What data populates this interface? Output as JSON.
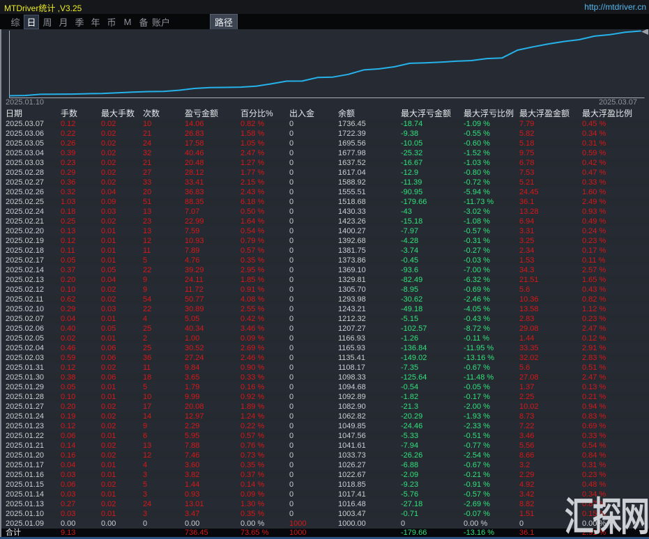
{
  "window": {
    "title": "MTDriver统计 ,V3.25",
    "url": "http://mtdriver.cn"
  },
  "menu": {
    "items": [
      "综",
      "日",
      "周",
      "月",
      "季",
      "年",
      "币",
      "M",
      "备",
      "账户"
    ],
    "selected_item": "日",
    "path_button_label": "路径"
  },
  "chart_data": {
    "type": "line",
    "start_label": "2025.01.10",
    "end_label": "2025.03.07",
    "line_color": "#25b2ea",
    "axis_color": "#a7adb4",
    "ylim": [
      1000,
      1736.45
    ],
    "grid": false,
    "series": [
      {
        "name": "余额",
        "x": [
          "2025.01.09",
          "2025.01.10",
          "2025.01.13",
          "2025.01.14",
          "2025.01.15",
          "2025.01.16",
          "2025.01.17",
          "2025.01.20",
          "2025.01.21",
          "2025.01.22",
          "2025.01.23",
          "2025.01.24",
          "2025.01.27",
          "2025.01.28",
          "2025.01.29",
          "2025.01.30",
          "2025.01.31",
          "2025.02.03",
          "2025.02.04",
          "2025.02.05",
          "2025.02.06",
          "2025.02.07",
          "2025.02.10",
          "2025.02.11",
          "2025.02.12",
          "2025.02.13",
          "2025.02.14",
          "2025.02.17",
          "2025.02.18",
          "2025.02.19",
          "2025.02.20",
          "2025.02.21",
          "2025.02.24",
          "2025.02.25",
          "2025.02.26",
          "2025.02.27",
          "2025.02.28",
          "2025.03.03",
          "2025.03.04",
          "2025.03.05",
          "2025.03.06",
          "2025.03.07"
        ],
        "values": [
          1000.0,
          1003.47,
          1016.48,
          1017.41,
          1018.85,
          1022.67,
          1026.27,
          1033.73,
          1041.61,
          1047.56,
          1049.85,
          1062.82,
          1082.9,
          1092.89,
          1094.68,
          1098.33,
          1108.17,
          1135.41,
          1165.93,
          1166.93,
          1207.27,
          1212.32,
          1243.21,
          1293.98,
          1305.7,
          1329.81,
          1369.1,
          1373.86,
          1381.75,
          1392.68,
          1400.27,
          1423.26,
          1430.33,
          1518.68,
          1555.51,
          1588.92,
          1617.04,
          1637.52,
          1677.98,
          1695.56,
          1722.39,
          1736.45
        ]
      }
    ]
  },
  "table": {
    "columns": [
      {
        "key": "date",
        "label": "日期"
      },
      {
        "key": "lots",
        "label": "手数"
      },
      {
        "key": "max-lots",
        "label": "最大手数"
      },
      {
        "key": "trades",
        "label": "次数"
      },
      {
        "key": "pnl",
        "label": "盈亏金额"
      },
      {
        "key": "pct",
        "label": "百分比%"
      },
      {
        "key": "deposit",
        "label": "出入金"
      },
      {
        "key": "balance",
        "label": "余额"
      },
      {
        "key": "max-float-loss",
        "label": "最大浮亏金额"
      },
      {
        "key": "max-float-loss-pct",
        "label": "最大浮亏比例"
      },
      {
        "key": "max-float-profit",
        "label": "最大浮盈金额"
      },
      {
        "key": "max-float-profit-pct",
        "label": "最大浮盈比例"
      }
    ],
    "rows": [
      [
        "2025.03.07",
        "0.12",
        "0.02",
        "10",
        "14.06",
        "0.82 %",
        "0",
        "1736.45",
        "-18.74",
        "-1.09 %",
        "7.79",
        "0.45 %"
      ],
      [
        "2025.03.06",
        "0.22",
        "0.02",
        "21",
        "26.83",
        "1.58 %",
        "0",
        "1722.39",
        "-9.38",
        "-0.55 %",
        "5.82",
        "0.34 %"
      ],
      [
        "2025.03.05",
        "0.26",
        "0.02",
        "24",
        "17.58",
        "1.05 %",
        "0",
        "1695.56",
        "-10.05",
        "-0.60 %",
        "5.18",
        "0.31 %"
      ],
      [
        "2025.03.04",
        "0.39",
        "0.02",
        "32",
        "40.46",
        "2.47 %",
        "0",
        "1677.98",
        "-25.32",
        "-1.52 %",
        "9.75",
        "0.59 %"
      ],
      [
        "2025.03.03",
        "0.23",
        "0.02",
        "21",
        "20.48",
        "1.27 %",
        "0",
        "1637.52",
        "-16.67",
        "-1.03 %",
        "6.78",
        "0.42 %"
      ],
      [
        "2025.02.28",
        "0.29",
        "0.02",
        "27",
        "28.12",
        "1.77 %",
        "0",
        "1617.04",
        "-12.9",
        "-0.80 %",
        "7.53",
        "0.47 %"
      ],
      [
        "2025.02.27",
        "0.36",
        "0.02",
        "33",
        "33.41",
        "2.15 %",
        "0",
        "1588.92",
        "-11.39",
        "-0.72 %",
        "5.21",
        "0.33 %"
      ],
      [
        "2025.02.26",
        "0.32",
        "0.04",
        "20",
        "36.83",
        "2.43 %",
        "0",
        "1555.51",
        "-90.95",
        "-5.94 %",
        "24.45",
        "1.60 %"
      ],
      [
        "2025.02.25",
        "1.03",
        "0.09",
        "51",
        "88.35",
        "6.18 %",
        "0",
        "1518.68",
        "-179.66",
        "-11.73 %",
        "36.1",
        "2.49 %"
      ],
      [
        "2025.02.24",
        "0.18",
        "0.03",
        "13",
        "7.07",
        "0.50 %",
        "0",
        "1430.33",
        "-43",
        "-3.02 %",
        "13.28",
        "0.93 %"
      ],
      [
        "2025.02.21",
        "0.25",
        "0.02",
        "23",
        "22.99",
        "1.64 %",
        "0",
        "1423.26",
        "-15.18",
        "-1.08 %",
        "6.94",
        "0.49 %"
      ],
      [
        "2025.02.20",
        "0.13",
        "0.01",
        "13",
        "7.59",
        "0.54 %",
        "0",
        "1400.27",
        "-7.97",
        "-0.57 %",
        "3.31",
        "0.24 %"
      ],
      [
        "2025.02.19",
        "0.12",
        "0.01",
        "12",
        "10.93",
        "0.79 %",
        "0",
        "1392.68",
        "-4.28",
        "-0.31 %",
        "3.25",
        "0.23 %"
      ],
      [
        "2025.02.18",
        "0.11",
        "0.01",
        "11",
        "7.89",
        "0.57 %",
        "0",
        "1381.75",
        "-3.74",
        "-0.27 %",
        "2.34",
        "0.17 %"
      ],
      [
        "2025.02.17",
        "0.05",
        "0.01",
        "5",
        "4.76",
        "0.35 %",
        "0",
        "1373.86",
        "-0.45",
        "-0.03 %",
        "1.53",
        "0.11 %"
      ],
      [
        "2025.02.14",
        "0.37",
        "0.05",
        "22",
        "39.29",
        "2.95 %",
        "0",
        "1369.10",
        "-93.6",
        "-7.00 %",
        "34.3",
        "2.57 %"
      ],
      [
        "2025.02.13",
        "0.20",
        "0.04",
        "9",
        "24.11",
        "1.85 %",
        "0",
        "1329.81",
        "-82.49",
        "-6.32 %",
        "21.51",
        "1.65 %"
      ],
      [
        "2025.02.12",
        "0.10",
        "0.02",
        "9",
        "11.72",
        "0.91 %",
        "0",
        "1305.70",
        "-8.95",
        "-0.69 %",
        "5.6",
        "0.43 %"
      ],
      [
        "2025.02.11",
        "0.62",
        "0.02",
        "54",
        "50.77",
        "4.08 %",
        "0",
        "1293.98",
        "-30.62",
        "-2.46 %",
        "10.36",
        "0.82 %"
      ],
      [
        "2025.02.10",
        "0.29",
        "0.03",
        "22",
        "30.89",
        "2.55 %",
        "0",
        "1243.21",
        "-49.18",
        "-4.05 %",
        "13.58",
        "1.12 %"
      ],
      [
        "2025.02.07",
        "0.04",
        "0.01",
        "4",
        "5.05",
        "0.42 %",
        "0",
        "1212.32",
        "-5.15",
        "-0.43 %",
        "2.83",
        "0.23 %"
      ],
      [
        "2025.02.06",
        "0.40",
        "0.05",
        "25",
        "40.34",
        "3.46 %",
        "0",
        "1207.27",
        "-102.57",
        "-8.72 %",
        "29.08",
        "2.47 %"
      ],
      [
        "2025.02.05",
        "0.02",
        "0.01",
        "2",
        "1.00",
        "0.09 %",
        "0",
        "1166.93",
        "-1.26",
        "-0.11 %",
        "1.44",
        "0.12 %"
      ],
      [
        "2025.02.04",
        "0.46",
        "0.06",
        "25",
        "30.52",
        "2.69 %",
        "0",
        "1165.93",
        "-136.84",
        "-11.95 %",
        "33.35",
        "2.91 %"
      ],
      [
        "2025.02.03",
        "0.59",
        "0.06",
        "36",
        "27.24",
        "2.46 %",
        "0",
        "1135.41",
        "-149.02",
        "-13.16 %",
        "32.02",
        "2.83 %"
      ],
      [
        "2025.01.31",
        "0.12",
        "0.02",
        "11",
        "9.84",
        "0.90 %",
        "0",
        "1108.17",
        "-7.35",
        "-0.67 %",
        "5.6",
        "0.51 %"
      ],
      [
        "2025.01.30",
        "0.38",
        "0.06",
        "18",
        "3.65",
        "0.33 %",
        "0",
        "1098.33",
        "-125.64",
        "-11.48 %",
        "27.08",
        "2.47 %"
      ],
      [
        "2025.01.29",
        "0.05",
        "0.01",
        "5",
        "1.79",
        "0.16 %",
        "0",
        "1094.68",
        "-0.54",
        "-0.05 %",
        "1.37",
        "0.13 %"
      ],
      [
        "2025.01.28",
        "0.10",
        "0.01",
        "10",
        "9.99",
        "0.92 %",
        "0",
        "1092.89",
        "-1.82",
        "-0.17 %",
        "2.25",
        "0.21 %"
      ],
      [
        "2025.01.27",
        "0.20",
        "0.02",
        "17",
        "20.08",
        "1.89 %",
        "0",
        "1082.90",
        "-21.3",
        "-2.00 %",
        "10.02",
        "0.94 %"
      ],
      [
        "2025.01.24",
        "0.19",
        "0.02",
        "14",
        "12.97",
        "1.24 %",
        "0",
        "1062.82",
        "-20.29",
        "-1.93 %",
        "8.73",
        "0.83 %"
      ],
      [
        "2025.01.23",
        "0.12",
        "0.02",
        "9",
        "2.29",
        "0.22 %",
        "0",
        "1049.85",
        "-24.46",
        "-2.33 %",
        "7.22",
        "0.69 %"
      ],
      [
        "2025.01.22",
        "0.06",
        "0.01",
        "6",
        "5.95",
        "0.57 %",
        "0",
        "1047.56",
        "-5.33",
        "-0.51 %",
        "3.46",
        "0.33 %"
      ],
      [
        "2025.01.21",
        "0.14",
        "0.02",
        "13",
        "7.88",
        "0.76 %",
        "0",
        "1041.61",
        "-7.94",
        "-0.77 %",
        "5.56",
        "0.54 %"
      ],
      [
        "2025.01.20",
        "0.16",
        "0.02",
        "12",
        "7.46",
        "0.73 %",
        "0",
        "1033.73",
        "-26.26",
        "-2.54 %",
        "8.66",
        "0.84 %"
      ],
      [
        "2025.01.17",
        "0.04",
        "0.01",
        "4",
        "3.60",
        "0.35 %",
        "0",
        "1026.27",
        "-6.88",
        "-0.67 %",
        "3.2",
        "0.31 %"
      ],
      [
        "2025.01.16",
        "0.03",
        "0.01",
        "3",
        "3.82",
        "0.37 %",
        "0",
        "1022.67",
        "-2.09",
        "-0.21 %",
        "2.29",
        "0.23 %"
      ],
      [
        "2025.01.15",
        "0.06",
        "0.02",
        "5",
        "1.44",
        "0.14 %",
        "0",
        "1018.85",
        "-9.23",
        "-0.91 %",
        "4.92",
        "0.48 %"
      ],
      [
        "2025.01.14",
        "0.03",
        "0.01",
        "3",
        "0.93",
        "0.09 %",
        "0",
        "1017.41",
        "-5.76",
        "-0.57 %",
        "3.42",
        "0.34 %"
      ],
      [
        "2025.01.13",
        "0.27",
        "0.02",
        "24",
        "13.01",
        "1.30 %",
        "0",
        "1016.48",
        "-27.18",
        "-2.69 %",
        "8.82",
        "0.87 %"
      ],
      [
        "2025.01.10",
        "0.03",
        "0.01",
        "3",
        "3.47",
        "0.35 %",
        "0",
        "1003.47",
        "-0.71",
        "-0.07 %",
        "1.51",
        "0.15 %"
      ],
      [
        "2025.01.09",
        "0.00",
        "0.00",
        "0",
        "0.00",
        "0.00 %",
        "1000",
        "1000.00",
        "0",
        "0.00 %",
        "0",
        "0.00 %"
      ]
    ],
    "total_row": [
      "合计",
      "9.13",
      "",
      "",
      "736.45",
      "73.65 %",
      "1000",
      "",
      "-179.66",
      "-13.16 %",
      "36.1",
      "2.91 %"
    ]
  },
  "watermark": "汇探网"
}
